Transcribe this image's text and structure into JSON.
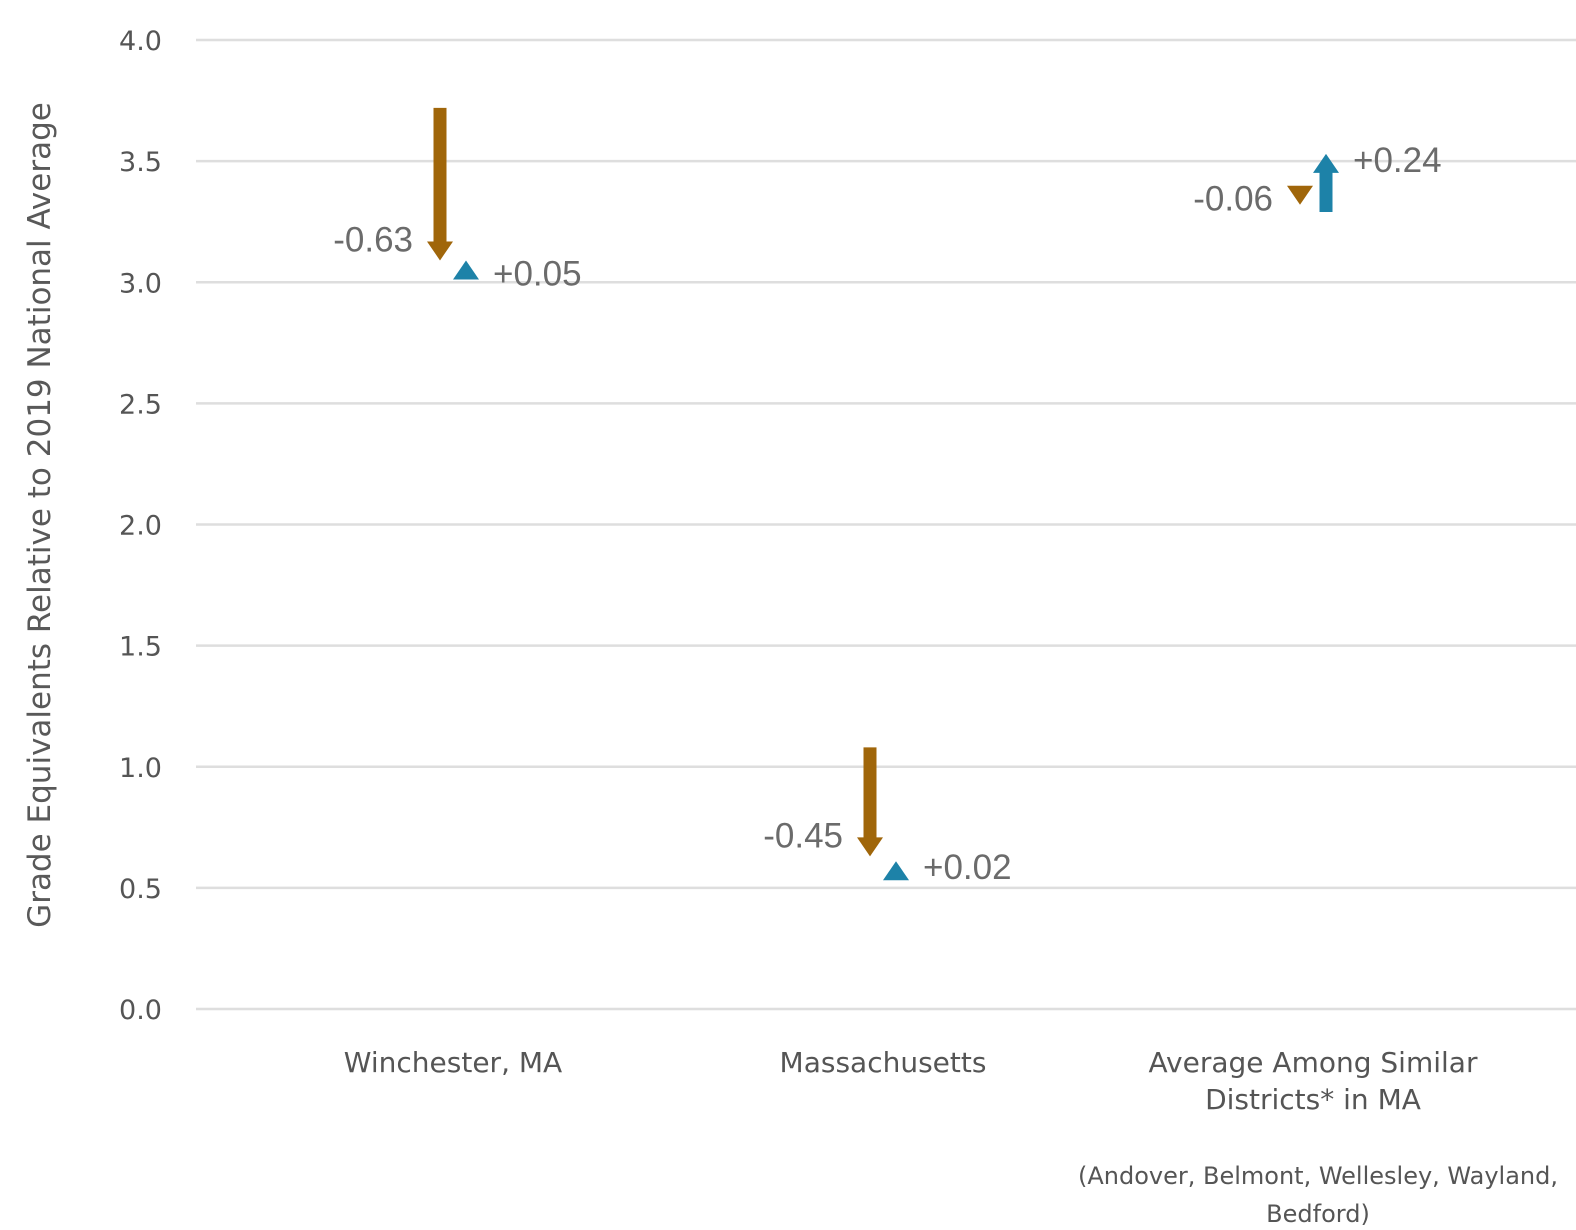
{
  "chart_data": {
    "type": "arrow",
    "ylabel": "Grade Equivalents Relative to 2019 National Average",
    "ylim": [
      0,
      4
    ],
    "yticks": [
      "0.0",
      "0.5",
      "1.0",
      "1.5",
      "2.0",
      "2.5",
      "3.0",
      "3.5",
      "4.0"
    ],
    "grid": true,
    "categories": [
      {
        "label_lines": [
          "Winchester, MA"
        ],
        "note_lines": []
      },
      {
        "label_lines": [
          "Massachusetts"
        ],
        "note_lines": []
      },
      {
        "label_lines": [
          "Average Among Similar",
          "Districts* in MA"
        ],
        "note_lines": [
          "(Andover, Belmont, Wellesley, Wayland,",
          "Bedford)"
        ]
      }
    ],
    "series": [
      {
        "color": "#a0660a",
        "points": [
          {
            "start": 3.72,
            "change": -0.63,
            "label": "-0.63"
          },
          {
            "start": 1.08,
            "change": -0.45,
            "label": "-0.45"
          },
          {
            "start": 3.38,
            "change": -0.06,
            "label": "-0.06"
          }
        ]
      },
      {
        "color": "#1d82a8",
        "points": [
          {
            "start": 3.04,
            "change": 0.05,
            "label": "+0.05"
          },
          {
            "start": 0.59,
            "change": 0.02,
            "label": "+0.02"
          },
          {
            "start": 3.29,
            "change": 0.24,
            "label": "+0.24"
          }
        ]
      }
    ]
  }
}
